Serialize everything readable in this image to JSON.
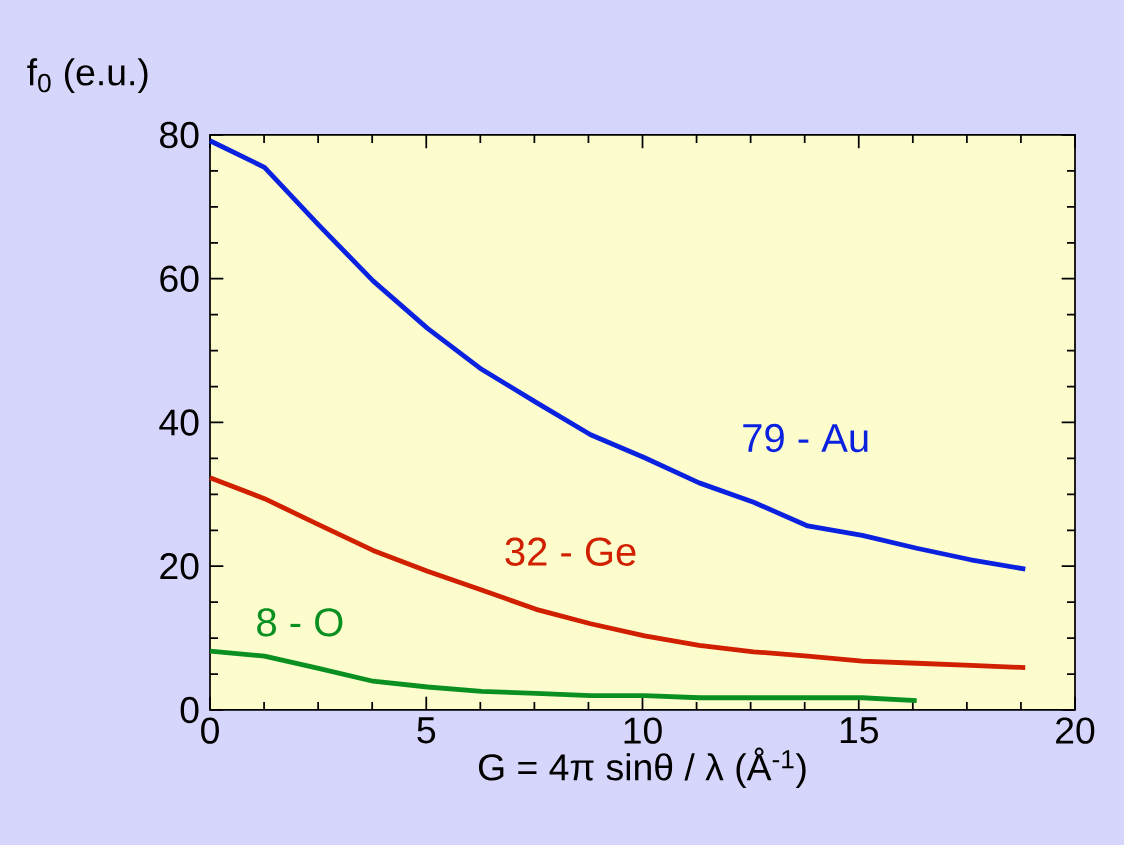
{
  "chart_data": {
    "type": "line",
    "xlabel": "G = 4π sinθ / λ  (Å$^{-1}$)",
    "ylabel": "f$_{0}$ (e.u.)",
    "x": [
      0,
      1.26,
      2.51,
      3.77,
      5.03,
      6.28,
      7.54,
      8.8,
      10.05,
      11.31,
      12.57,
      13.82,
      15.08,
      16.34,
      17.59,
      18.85
    ],
    "series": [
      {
        "name": "79 - Au",
        "color": "#0a22e0",
        "values": [
          79.2,
          75.5,
          67.5,
          59.7,
          53.1,
          47.4,
          42.8,
          38.3,
          35.1,
          31.6,
          28.9,
          25.6,
          24.3,
          22.5,
          20.9,
          19.6
        ]
      },
      {
        "name": "32 - Ge",
        "color": "#d02000",
        "values": [
          32.3,
          29.4,
          25.8,
          22.2,
          19.3,
          16.7,
          14.0,
          12.0,
          10.3,
          9.0,
          8.1,
          7.5,
          6.8,
          6.5,
          6.2,
          5.9
        ]
      },
      {
        "name": "8 - O",
        "color": "#0a9020",
        "x": [
          0,
          1.26,
          2.51,
          3.77,
          5.03,
          6.28,
          7.54,
          8.8,
          10.05,
          11.31,
          12.57,
          13.82,
          15.08,
          16.34
        ],
        "values": [
          8.2,
          7.5,
          5.8,
          4.0,
          3.2,
          2.6,
          2.3,
          2.0,
          2.0,
          1.7,
          1.7,
          1.7,
          1.7,
          1.3
        ]
      }
    ],
    "xlim": [
      0,
      20
    ],
    "ylim": [
      0,
      80
    ],
    "xticks": [
      0,
      5,
      10,
      15,
      20
    ],
    "yticks": [
      0,
      20,
      40,
      60,
      80
    ]
  }
}
